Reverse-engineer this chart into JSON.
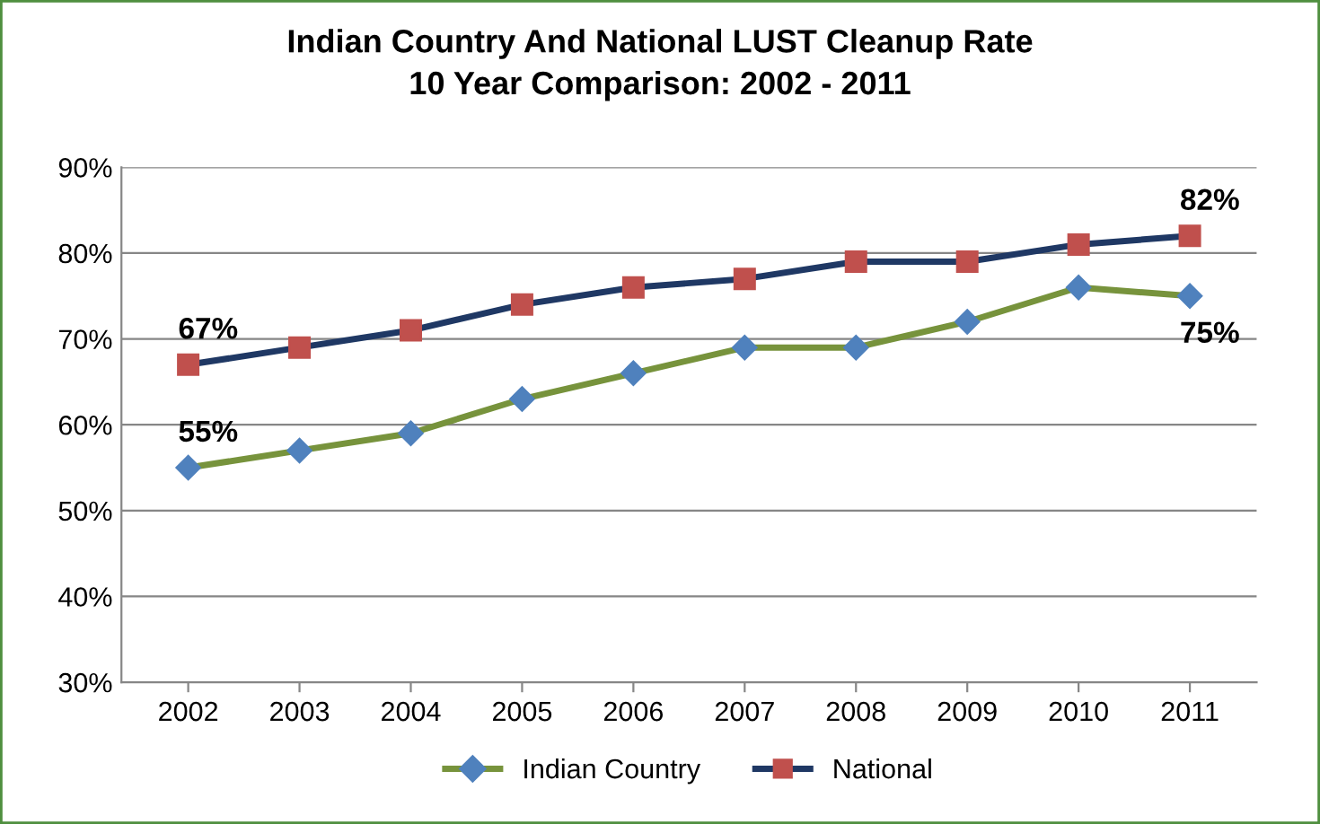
{
  "chart_data": {
    "type": "line",
    "title": "Indian Country And National LUST Cleanup Rate\n10 Year Comparison: 2002 - 2011",
    "categories": [
      "2002",
      "2003",
      "2004",
      "2005",
      "2006",
      "2007",
      "2008",
      "2009",
      "2010",
      "2011"
    ],
    "series": [
      {
        "name": "Indian Country",
        "color": "#77933c",
        "marker": "diamond",
        "colors": [
          "#4f81bd",
          "#4f81bd",
          "#4f81bd",
          "#4f81bd",
          "#4f81bd",
          "#4f81bd",
          "#4f81bd",
          "#4f81bd",
          "#4f81bd",
          "#4f81bd"
        ],
        "values": [
          55,
          57,
          59,
          63,
          66,
          69,
          69,
          72,
          76,
          75
        ],
        "value_labels": [
          "55%",
          null,
          null,
          null,
          null,
          null,
          null,
          null,
          null,
          "75%"
        ]
      },
      {
        "name": "National",
        "color": "#1f3864",
        "marker": "square",
        "colors": [
          "#c0504d",
          "#c0504d",
          "#c0504d",
          "#c0504d",
          "#c0504d",
          "#c0504d",
          "#c0504d",
          "#c0504d",
          "#c0504d",
          "#c0504d"
        ],
        "values": [
          67,
          69,
          71,
          74,
          76,
          77,
          79,
          79,
          81,
          82
        ],
        "value_labels": [
          "67%",
          null,
          null,
          null,
          null,
          null,
          null,
          null,
          null,
          "82%"
        ]
      }
    ],
    "ylim": [
      30,
      90
    ],
    "yticks": [
      {
        "value": 30,
        "label": "30%"
      },
      {
        "value": 40,
        "label": "40%"
      },
      {
        "value": 50,
        "label": "50%"
      },
      {
        "value": 60,
        "label": "60%"
      },
      {
        "value": 70,
        "label": "70%"
      },
      {
        "value": 80,
        "label": "80%"
      },
      {
        "value": 90,
        "label": "90%"
      }
    ],
    "grid": "y",
    "legend": "bottom",
    "line_style": "solid"
  }
}
